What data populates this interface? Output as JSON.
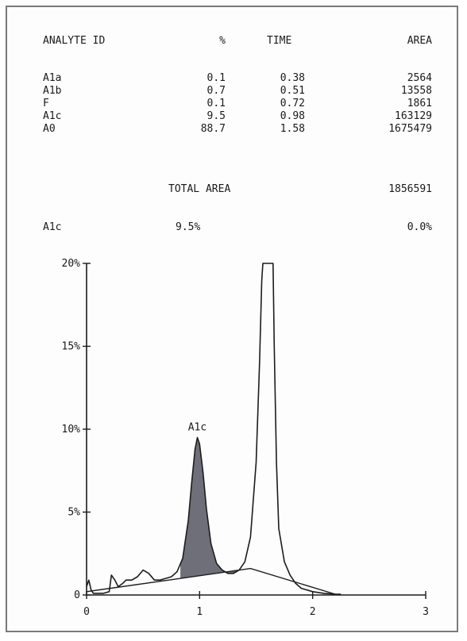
{
  "table": {
    "headers": {
      "analyte_id": "ANALYTE ID",
      "percent": "%",
      "time": "TIME",
      "area": "AREA"
    },
    "rows": [
      {
        "id": "A1a",
        "percent": "0.1",
        "time": "0.38",
        "area": "2564"
      },
      {
        "id": "A1b",
        "percent": "0.7",
        "time": "0.51",
        "area": "13558"
      },
      {
        "id": "F",
        "percent": "0.1",
        "time": "0.72",
        "area": "1861"
      },
      {
        "id": "A1c",
        "percent": "9.5",
        "time": "0.98",
        "area": "163129"
      },
      {
        "id": "A0",
        "percent": "88.7",
        "time": "1.58",
        "area": "1675479"
      }
    ],
    "total_area_label": "TOTAL AREA",
    "total_area_value": "1856591",
    "summary": {
      "id": "A1c",
      "percent": "9.5%",
      "extra": "0.0%"
    }
  },
  "chart_data": {
    "type": "line",
    "title": "",
    "xlabel": "",
    "ylabel": "",
    "xlim": [
      0,
      3
    ],
    "ylim": [
      0,
      20
    ],
    "x_ticks": [
      "0",
      "1",
      "2",
      "3"
    ],
    "y_ticks": [
      "0",
      "5%",
      "10%",
      "15%",
      "20%"
    ],
    "grid": false,
    "legend": "none",
    "series": [
      {
        "x": [
          0.0,
          0.02,
          0.04,
          0.06,
          0.1,
          0.15,
          0.2,
          0.22,
          0.25,
          0.28,
          0.32,
          0.35,
          0.4,
          0.45,
          0.5,
          0.55,
          0.6,
          0.65,
          0.7,
          0.75,
          0.8,
          0.85,
          0.9,
          0.93,
          0.96,
          0.98,
          1.0,
          1.03,
          1.06,
          1.1,
          1.15,
          1.2,
          1.25,
          1.3,
          1.35,
          1.4,
          1.45,
          1.5,
          1.53,
          1.55,
          1.56,
          1.65,
          1.66,
          1.68,
          1.7,
          1.75,
          1.8,
          1.85,
          1.9,
          2.0,
          2.1,
          2.2,
          2.25
        ],
        "y": [
          0.5,
          0.9,
          0.3,
          0.1,
          0.1,
          0.1,
          0.2,
          1.2,
          0.9,
          0.5,
          0.7,
          0.9,
          0.9,
          1.1,
          1.5,
          1.3,
          0.9,
          0.9,
          1.0,
          1.1,
          1.4,
          2.2,
          4.5,
          6.8,
          8.8,
          9.5,
          9.1,
          7.4,
          5.2,
          3.1,
          1.9,
          1.5,
          1.3,
          1.3,
          1.5,
          2.0,
          3.5,
          8.0,
          14.0,
          19.0,
          20.0,
          20.0,
          15.0,
          8.0,
          4.0,
          2.0,
          1.2,
          0.7,
          0.4,
          0.2,
          0.1,
          0.05,
          0.05
        ]
      }
    ],
    "baseline": {
      "x": [
        0.0,
        1.45,
        2.2
      ],
      "y": [
        0.2,
        1.6,
        0.05
      ]
    },
    "shaded_peak": {
      "label": "A1c",
      "x_range": [
        0.83,
        1.33
      ],
      "fill": "#6f6f7a"
    },
    "line_color": "#1c1c1c"
  }
}
